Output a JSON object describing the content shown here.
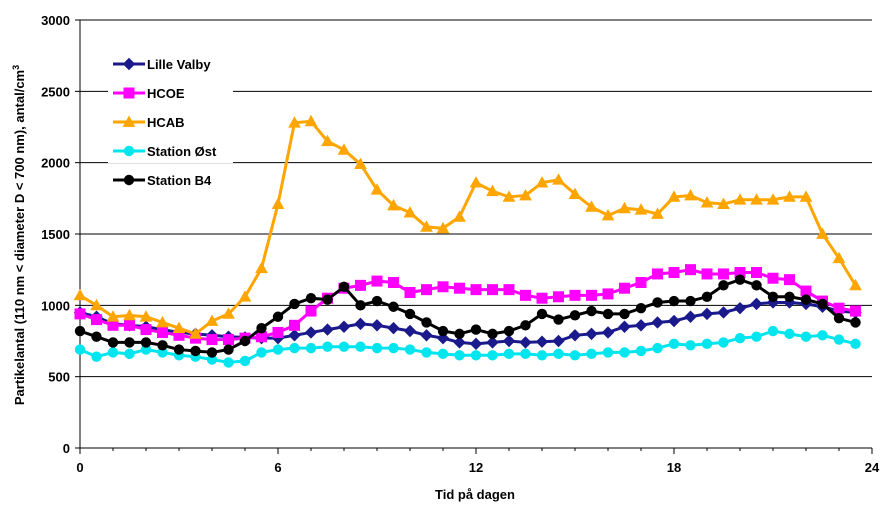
{
  "chart_data": {
    "type": "line",
    "xlabel": "Tid på dagen",
    "ylabel_main": "Partikelantal (110 nm < diameter D < 700 nm), antal/cm",
    "ylabel_sup": "3",
    "xlim": [
      0,
      24
    ],
    "ylim": [
      0,
      3000
    ],
    "xticks": [
      0,
      6,
      12,
      18,
      24
    ],
    "yticks": [
      0,
      500,
      1000,
      1500,
      2000,
      2500,
      3000
    ],
    "grid": "horizontal",
    "legend_position": "top-left",
    "series": [
      {
        "name": "Lille Valby",
        "color": "#1a1a8c",
        "marker": "diamond",
        "values": [
          [
            0,
            950
          ],
          [
            0.5,
            920
          ],
          [
            1,
            870
          ],
          [
            1.5,
            860
          ],
          [
            2,
            850
          ],
          [
            2.5,
            830
          ],
          [
            3,
            810
          ],
          [
            3.5,
            800
          ],
          [
            4,
            790
          ],
          [
            4.5,
            780
          ],
          [
            5,
            775
          ],
          [
            5.5,
            770
          ],
          [
            6,
            770
          ],
          [
            6.5,
            790
          ],
          [
            7,
            810
          ],
          [
            7.5,
            830
          ],
          [
            8,
            850
          ],
          [
            8.5,
            870
          ],
          [
            9,
            860
          ],
          [
            9.5,
            840
          ],
          [
            10,
            820
          ],
          [
            10.5,
            790
          ],
          [
            11,
            770
          ],
          [
            11.5,
            740
          ],
          [
            12,
            730
          ],
          [
            12.5,
            740
          ],
          [
            13,
            750
          ],
          [
            13.5,
            740
          ],
          [
            14,
            745
          ],
          [
            14.5,
            750
          ],
          [
            15,
            790
          ],
          [
            15.5,
            800
          ],
          [
            16,
            810
          ],
          [
            16.5,
            850
          ],
          [
            17,
            860
          ],
          [
            17.5,
            880
          ],
          [
            18,
            890
          ],
          [
            18.5,
            920
          ],
          [
            19,
            940
          ],
          [
            19.5,
            950
          ],
          [
            20,
            980
          ],
          [
            20.5,
            1010
          ],
          [
            21,
            1020
          ],
          [
            21.5,
            1020
          ],
          [
            22,
            1010
          ],
          [
            22.5,
            990
          ],
          [
            23,
            960
          ],
          [
            23.5,
            950
          ]
        ]
      },
      {
        "name": "HCOE",
        "color": "#ff00ff",
        "marker": "square",
        "values": [
          [
            0,
            940
          ],
          [
            0.5,
            900
          ],
          [
            1,
            860
          ],
          [
            1.5,
            860
          ],
          [
            2,
            830
          ],
          [
            2.5,
            810
          ],
          [
            3,
            790
          ],
          [
            3.5,
            770
          ],
          [
            4,
            760
          ],
          [
            4.5,
            760
          ],
          [
            5,
            770
          ],
          [
            5.5,
            780
          ],
          [
            6,
            810
          ],
          [
            6.5,
            860
          ],
          [
            7,
            960
          ],
          [
            7.5,
            1050
          ],
          [
            8,
            1120
          ],
          [
            8.5,
            1140
          ],
          [
            9,
            1170
          ],
          [
            9.5,
            1160
          ],
          [
            10,
            1090
          ],
          [
            10.5,
            1110
          ],
          [
            11,
            1130
          ],
          [
            11.5,
            1120
          ],
          [
            12,
            1110
          ],
          [
            12.5,
            1110
          ],
          [
            13,
            1110
          ],
          [
            13.5,
            1070
          ],
          [
            14,
            1050
          ],
          [
            14.5,
            1060
          ],
          [
            15,
            1070
          ],
          [
            15.5,
            1070
          ],
          [
            16,
            1080
          ],
          [
            16.5,
            1120
          ],
          [
            17,
            1160
          ],
          [
            17.5,
            1220
          ],
          [
            18,
            1230
          ],
          [
            18.5,
            1250
          ],
          [
            19,
            1220
          ],
          [
            19.5,
            1220
          ],
          [
            20,
            1230
          ],
          [
            20.5,
            1230
          ],
          [
            21,
            1190
          ],
          [
            21.5,
            1180
          ],
          [
            22,
            1100
          ],
          [
            22.5,
            1030
          ],
          [
            23,
            980
          ],
          [
            23.5,
            960
          ]
        ]
      },
      {
        "name": "HCAB",
        "color": "#ffa500",
        "marker": "triangle",
        "values": [
          [
            0,
            1070
          ],
          [
            0.5,
            1000
          ],
          [
            1,
            920
          ],
          [
            1.5,
            930
          ],
          [
            2,
            920
          ],
          [
            2.5,
            880
          ],
          [
            3,
            840
          ],
          [
            3.5,
            800
          ],
          [
            4,
            890
          ],
          [
            4.5,
            940
          ],
          [
            5,
            1060
          ],
          [
            5.5,
            1260
          ],
          [
            6,
            1710
          ],
          [
            6.5,
            2280
          ],
          [
            7,
            2290
          ],
          [
            7.5,
            2150
          ],
          [
            8,
            2090
          ],
          [
            8.5,
            1990
          ],
          [
            9,
            1810
          ],
          [
            9.5,
            1700
          ],
          [
            10,
            1650
          ],
          [
            10.5,
            1550
          ],
          [
            11,
            1540
          ],
          [
            11.5,
            1620
          ],
          [
            12,
            1860
          ],
          [
            12.5,
            1800
          ],
          [
            13,
            1760
          ],
          [
            13.5,
            1770
          ],
          [
            14,
            1860
          ],
          [
            14.5,
            1880
          ],
          [
            15,
            1780
          ],
          [
            15.5,
            1690
          ],
          [
            16,
            1630
          ],
          [
            16.5,
            1680
          ],
          [
            17,
            1670
          ],
          [
            17.5,
            1640
          ],
          [
            18,
            1760
          ],
          [
            18.5,
            1770
          ],
          [
            19,
            1720
          ],
          [
            19.5,
            1710
          ],
          [
            20,
            1740
          ],
          [
            20.5,
            1740
          ],
          [
            21,
            1740
          ],
          [
            21.5,
            1760
          ],
          [
            22,
            1760
          ],
          [
            22.5,
            1500
          ],
          [
            23,
            1330
          ],
          [
            23.5,
            1140
          ]
        ]
      },
      {
        "name": "Station Øst",
        "color": "#00e5ee",
        "marker": "circle",
        "values": [
          [
            0,
            690
          ],
          [
            0.5,
            640
          ],
          [
            1,
            670
          ],
          [
            1.5,
            660
          ],
          [
            2,
            690
          ],
          [
            2.5,
            670
          ],
          [
            3,
            650
          ],
          [
            3.5,
            640
          ],
          [
            4,
            620
          ],
          [
            4.5,
            600
          ],
          [
            5,
            610
          ],
          [
            5.5,
            670
          ],
          [
            6,
            690
          ],
          [
            6.5,
            700
          ],
          [
            7,
            700
          ],
          [
            7.5,
            710
          ],
          [
            8,
            710
          ],
          [
            8.5,
            710
          ],
          [
            9,
            700
          ],
          [
            9.5,
            700
          ],
          [
            10,
            690
          ],
          [
            10.5,
            670
          ],
          [
            11,
            660
          ],
          [
            11.5,
            650
          ],
          [
            12,
            650
          ],
          [
            12.5,
            650
          ],
          [
            13,
            660
          ],
          [
            13.5,
            660
          ],
          [
            14,
            650
          ],
          [
            14.5,
            660
          ],
          [
            15,
            650
          ],
          [
            15.5,
            660
          ],
          [
            16,
            670
          ],
          [
            16.5,
            670
          ],
          [
            17,
            680
          ],
          [
            17.5,
            700
          ],
          [
            18,
            730
          ],
          [
            18.5,
            720
          ],
          [
            19,
            730
          ],
          [
            19.5,
            740
          ],
          [
            20,
            770
          ],
          [
            20.5,
            780
          ],
          [
            21,
            820
          ],
          [
            21.5,
            800
          ],
          [
            22,
            780
          ],
          [
            22.5,
            790
          ],
          [
            23,
            760
          ],
          [
            23.5,
            730
          ]
        ]
      },
      {
        "name": "Station B4",
        "color": "#000000",
        "marker": "circle",
        "values": [
          [
            0,
            820
          ],
          [
            0.5,
            780
          ],
          [
            1,
            740
          ],
          [
            1.5,
            740
          ],
          [
            2,
            740
          ],
          [
            2.5,
            720
          ],
          [
            3,
            690
          ],
          [
            3.5,
            680
          ],
          [
            4,
            670
          ],
          [
            4.5,
            690
          ],
          [
            5,
            750
          ],
          [
            5.5,
            840
          ],
          [
            6,
            920
          ],
          [
            6.5,
            1010
          ],
          [
            7,
            1050
          ],
          [
            7.5,
            1040
          ],
          [
            8,
            1130
          ],
          [
            8.5,
            1000
          ],
          [
            9,
            1030
          ],
          [
            9.5,
            990
          ],
          [
            10,
            940
          ],
          [
            10.5,
            880
          ],
          [
            11,
            820
          ],
          [
            11.5,
            800
          ],
          [
            12,
            830
          ],
          [
            12.5,
            800
          ],
          [
            13,
            820
          ],
          [
            13.5,
            860
          ],
          [
            14,
            940
          ],
          [
            14.5,
            900
          ],
          [
            15,
            930
          ],
          [
            15.5,
            960
          ],
          [
            16,
            940
          ],
          [
            16.5,
            940
          ],
          [
            17,
            980
          ],
          [
            17.5,
            1020
          ],
          [
            18,
            1030
          ],
          [
            18.5,
            1030
          ],
          [
            19,
            1060
          ],
          [
            19.5,
            1140
          ],
          [
            20,
            1180
          ],
          [
            20.5,
            1140
          ],
          [
            21,
            1060
          ],
          [
            21.5,
            1060
          ],
          [
            22,
            1040
          ],
          [
            22.5,
            1010
          ],
          [
            23,
            910
          ],
          [
            23.5,
            880
          ]
        ]
      }
    ]
  }
}
